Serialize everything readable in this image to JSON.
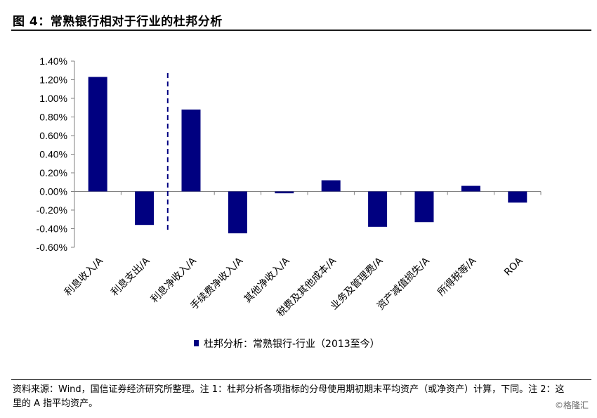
{
  "header": {
    "title": "图 4：常熟银行相对于行业的杜邦分析"
  },
  "chart_data": {
    "type": "bar",
    "categories": [
      "利息收入/A",
      "利息支出/A",
      "利息净收入/A",
      "手续费净收入/A",
      "其他净收入/A",
      "税费及其他成本/A",
      "业务及管理费/A",
      "资产减值损失/A",
      "所得税等/A",
      "ROA"
    ],
    "series": [
      {
        "name": "杜邦分析：常熟银行-行业（2013至今）",
        "values": [
          1.23,
          -0.36,
          0.88,
          -0.45,
          -0.02,
          0.12,
          -0.38,
          -0.33,
          0.06,
          -0.12
        ],
        "color": "#000080"
      }
    ],
    "ylim": [
      -0.6,
      1.4
    ],
    "yticks": [
      "1.40%",
      "1.20%",
      "1.00%",
      "0.80%",
      "0.60%",
      "0.40%",
      "0.20%",
      "0.00%",
      "-0.20%",
      "-0.40%",
      "-0.60%"
    ],
    "ytick_values": [
      1.4,
      1.2,
      1.0,
      0.8,
      0.6,
      0.4,
      0.2,
      0.0,
      -0.2,
      -0.4,
      -0.6
    ],
    "divider_after_category": 1,
    "legend_position": "bottom"
  },
  "footer": {
    "note": "资料来源：Wind，国信证券经济研究所整理。注 1：杜邦分析各项指标的分母使用期初期末平均资产（或净资产）计算，下同。注 2：这里的 A 指平均资产。",
    "source": "©格隆汇"
  }
}
